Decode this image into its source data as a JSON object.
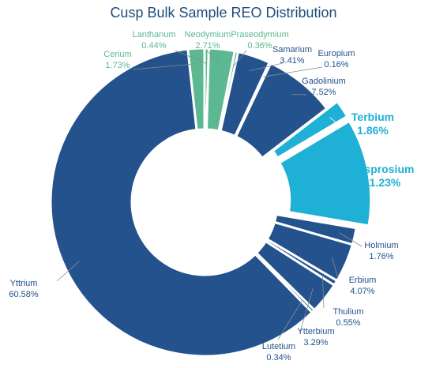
{
  "chart_data": {
    "type": "pie",
    "title": "Cusp Bulk Sample REO Distribution",
    "series": [
      {
        "name": "",
        "data": [
          {
            "label": "Lanthanum",
            "value": 0.44,
            "value_label": "0.44%",
            "color": "#5bb891",
            "emphasis": false
          },
          {
            "label": "Neodymium",
            "value": 2.71,
            "value_label": "2.71%",
            "color": "#5bb891",
            "emphasis": false
          },
          {
            "label": "Praseodymium",
            "value": 0.36,
            "value_label": "0.36%",
            "color": "#5bb891",
            "emphasis": false
          },
          {
            "label": "Samarium",
            "value": 3.41,
            "value_label": "3.41%",
            "color": "#24528d",
            "emphasis": false
          },
          {
            "label": "Europium",
            "value": 0.16,
            "value_label": "0.16%",
            "color": "#24528d",
            "emphasis": false
          },
          {
            "label": "Gadolinium",
            "value": 7.52,
            "value_label": "7.52%",
            "color": "#24528d",
            "emphasis": false
          },
          {
            "label": "Terbium",
            "value": 1.86,
            "value_label": "1.86%",
            "color": "#1fb0d6",
            "emphasis": true
          },
          {
            "label": "Dysprosium",
            "value": 11.23,
            "value_label": "11.23%",
            "color": "#1fb0d6",
            "emphasis": true
          },
          {
            "label": "Holmium",
            "value": 1.76,
            "value_label": "1.76%",
            "color": "#24528d",
            "emphasis": false
          },
          {
            "label": "Erbium",
            "value": 4.07,
            "value_label": "4.07%",
            "color": "#24528d",
            "emphasis": false
          },
          {
            "label": "Thulium",
            "value": 0.55,
            "value_label": "0.55%",
            "color": "#24528d",
            "emphasis": false
          },
          {
            "label": "Ytterbium",
            "value": 3.29,
            "value_label": "3.29%",
            "color": "#24528d",
            "emphasis": false
          },
          {
            "label": "Lutetium",
            "value": 0.34,
            "value_label": "0.34%",
            "color": "#24528d",
            "emphasis": false
          },
          {
            "label": "Yttrium",
            "value": 60.58,
            "value_label": "60.58%",
            "color": "#24528d",
            "emphasis": false
          },
          {
            "label": "Cerium",
            "value": 1.73,
            "value_label": "1.73%",
            "color": "#5bb891",
            "emphasis": false
          }
        ]
      }
    ],
    "donut": true,
    "exploded": [
      "Terbium",
      "Dysprosium"
    ],
    "label_colors": {
      "light_rare_earth": "#5bb891",
      "heavy_rare_earth": "#24528d",
      "highlight": "#1fb0d6",
      "leader": "#8c8c8c"
    },
    "legend": "none"
  }
}
